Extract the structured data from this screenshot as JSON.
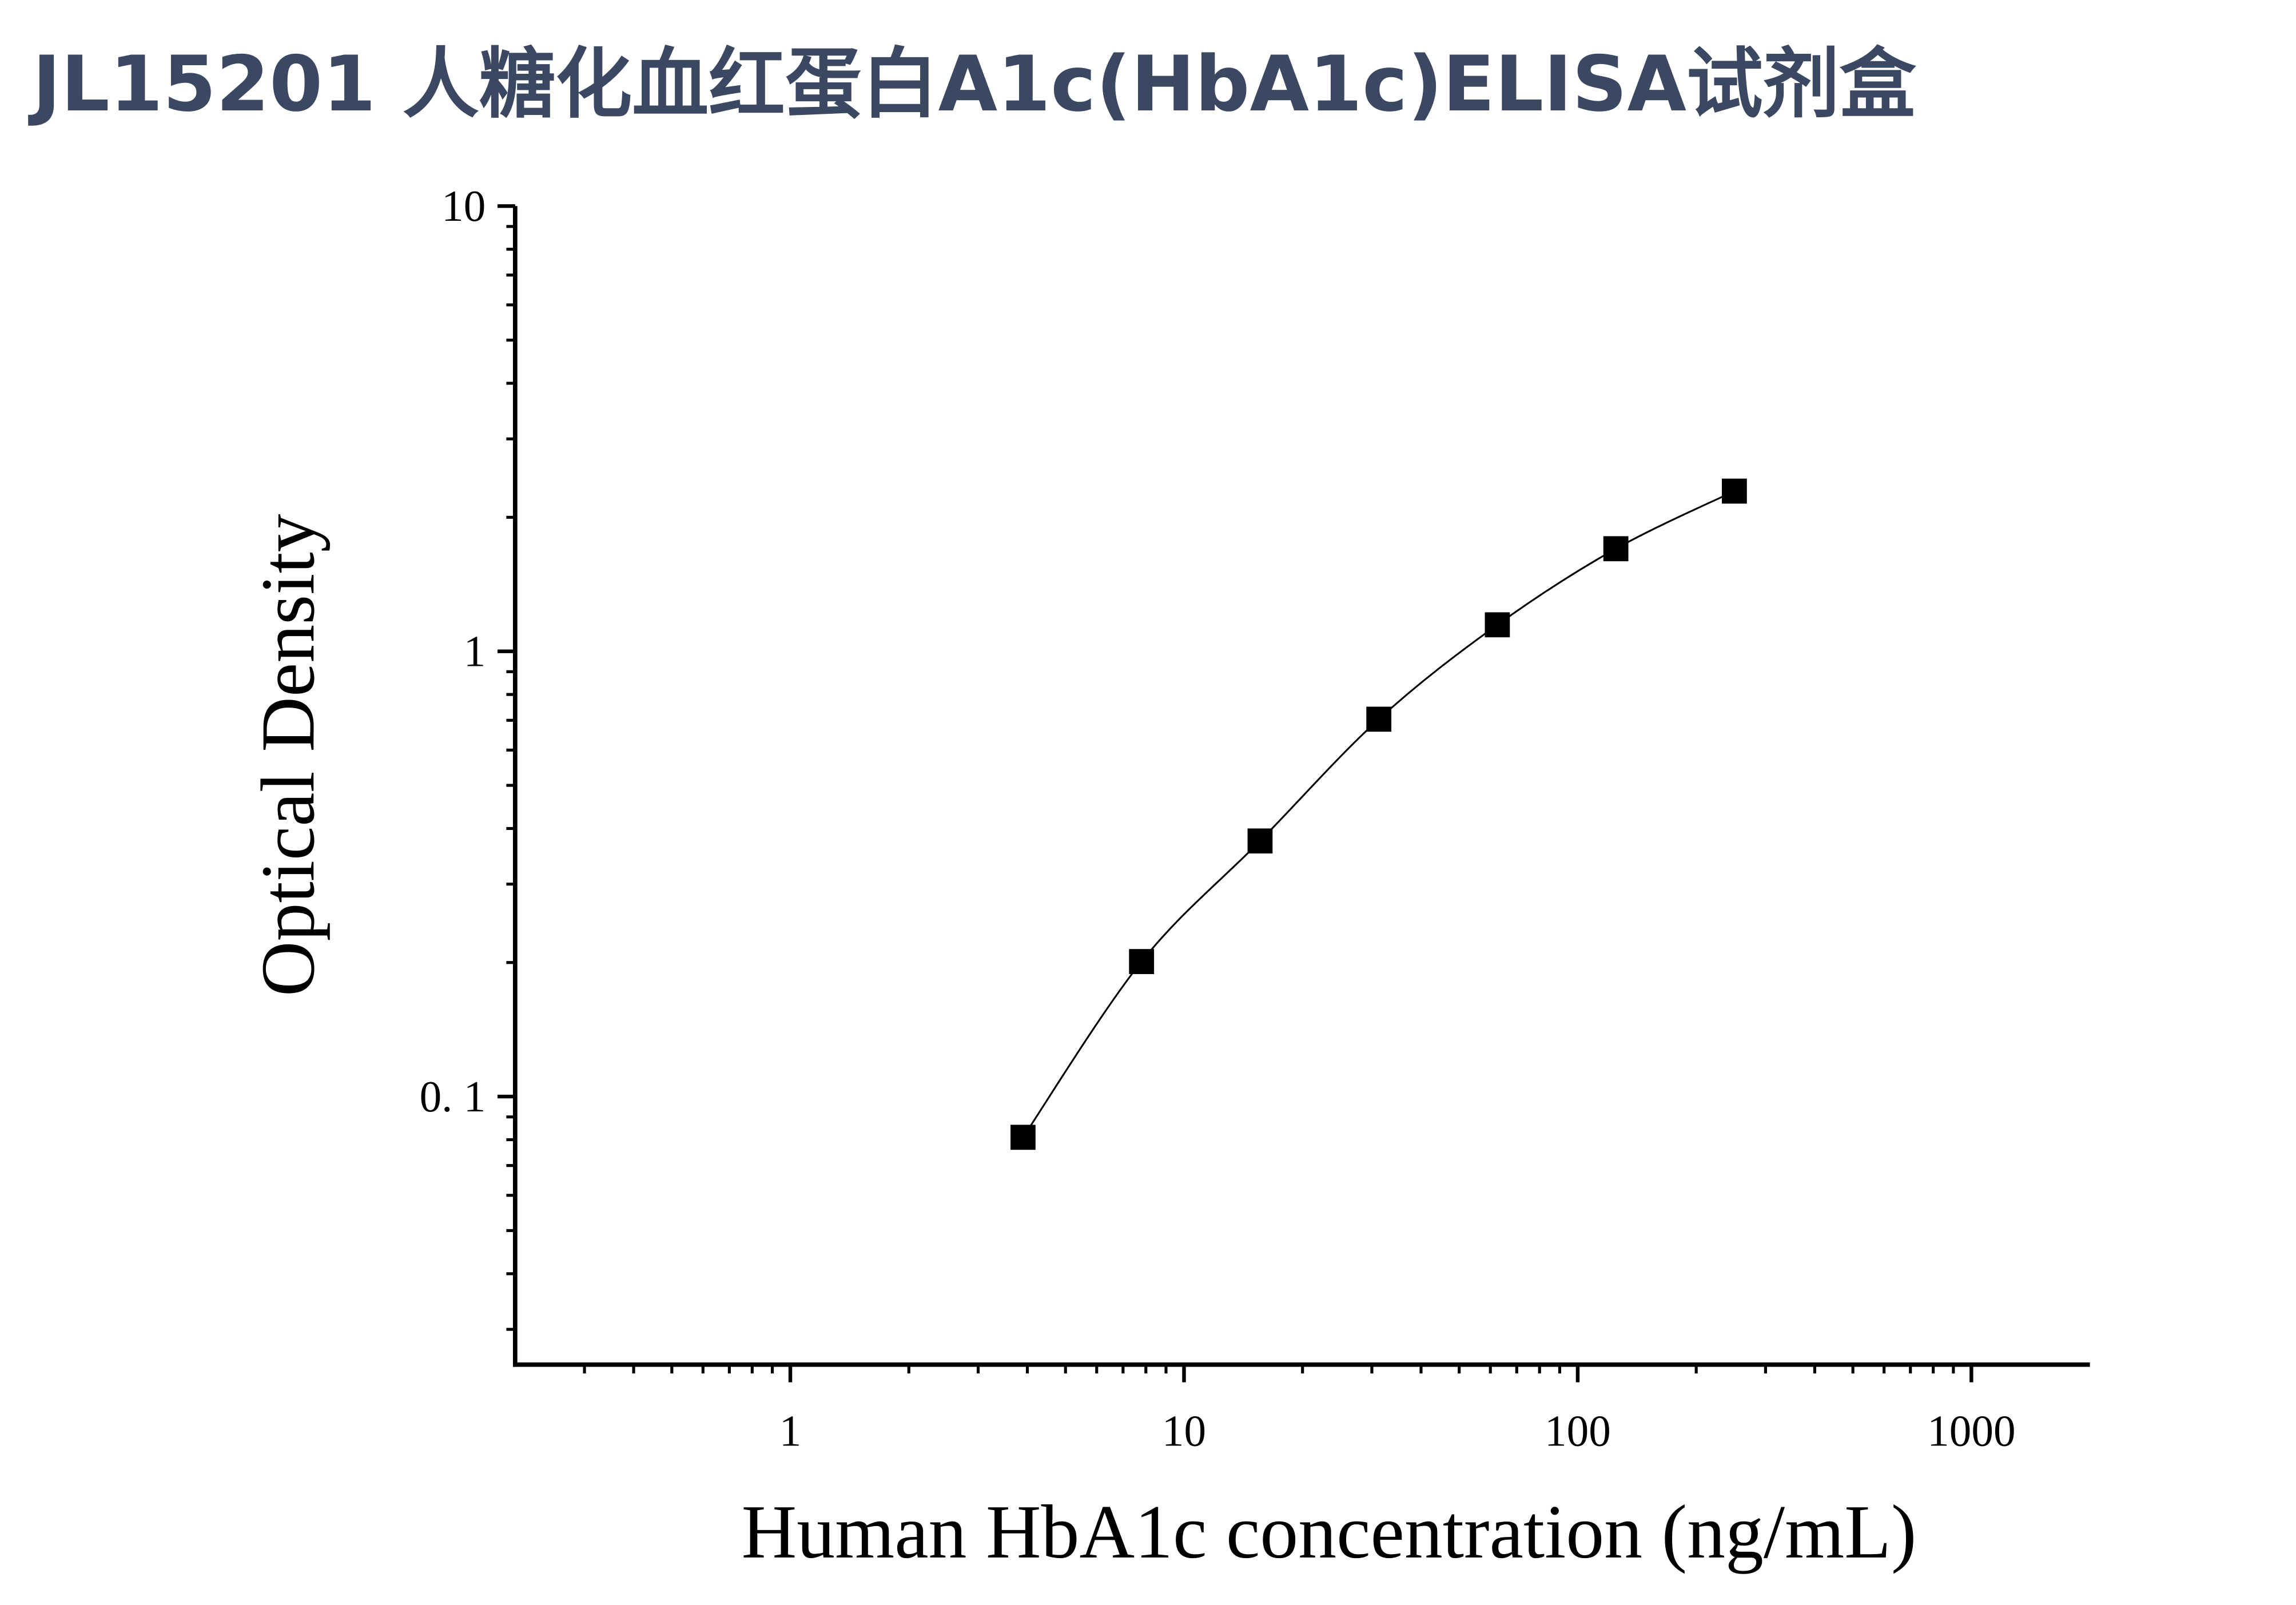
{
  "chart_data": {
    "type": "scatter",
    "title": "JL15201 人糖化血红蛋白A1c(HbA1c)ELISA试剂盒",
    "x_label": "Human HbA1c concentration (ng/mL)",
    "y_label": "Optical Density",
    "x": [
      3.9,
      7.8,
      15.6,
      31.25,
      62.5,
      125,
      250
    ],
    "series": [
      {
        "color": "#000000",
        "marker": "square",
        "line": true,
        "values": [
          0.081,
          0.201,
          0.375,
          0.704,
          1.147,
          1.7,
          2.29
        ]
      }
    ],
    "x_log": true,
    "y_log": true,
    "xlim": [
      0.2,
      2000
    ],
    "ylim": [
      0.025,
      10
    ],
    "xticks": [
      1,
      10,
      100,
      1000
    ],
    "yticks": [
      {
        "value": 0.1,
        "label": "0. 1"
      },
      1,
      10
    ]
  }
}
